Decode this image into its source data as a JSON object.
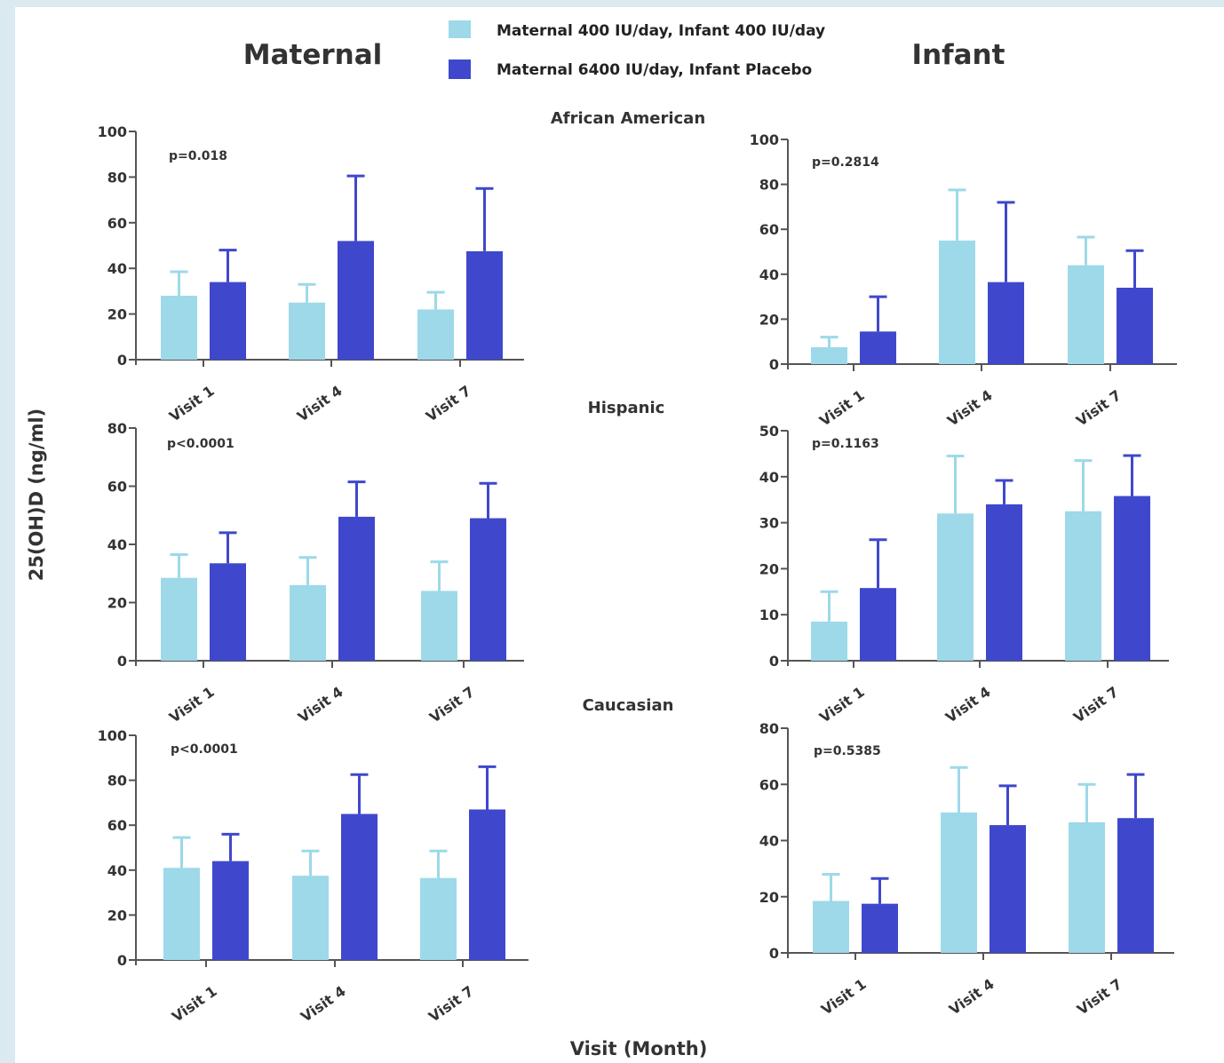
{
  "header": {
    "maternal_title": "Maternal",
    "infant_title": "Infant"
  },
  "legend": [
    {
      "label": "Maternal 400 IU/day, Infant 400 IU/day",
      "color": "#9dd9e8"
    },
    {
      "label": "Maternal 6400 IU/day, Infant Placebo",
      "color": "#3f48cc"
    }
  ],
  "sections": [
    "African American",
    "Hispanic",
    "Caucasian"
  ],
  "y_axis_title": "25(OH)D (ng/ml)",
  "x_axis_title": "Visit (Month)",
  "colors": {
    "light": "#9dd9e8",
    "dark": "#3f48cc",
    "axis": "#555555"
  },
  "chart_data": [
    {
      "type": "bar",
      "panel": "maternal-african-american",
      "categories": [
        "Visit 1",
        "Visit 4",
        "Visit 7"
      ],
      "series": [
        {
          "values": [
            28,
            25,
            22
          ],
          "errors": [
            10.5,
            8,
            7.5
          ]
        },
        {
          "values": [
            34,
            52,
            47.5
          ],
          "errors": [
            14,
            28.5,
            27.5
          ]
        }
      ],
      "ylim": [
        0,
        100
      ],
      "yticks": [
        0,
        20,
        40,
        60,
        80,
        100
      ],
      "annotation": "p=0.018"
    },
    {
      "type": "bar",
      "panel": "infant-african-american",
      "categories": [
        "Visit 1",
        "Visit 4",
        "Visit 7"
      ],
      "series": [
        {
          "values": [
            7.5,
            55,
            44
          ],
          "errors": [
            4.5,
            22.5,
            12.5
          ]
        },
        {
          "values": [
            14.5,
            36.5,
            34
          ],
          "errors": [
            15.5,
            35.5,
            16.5
          ]
        }
      ],
      "ylim": [
        0,
        100
      ],
      "yticks": [
        0,
        20,
        40,
        60,
        80,
        100
      ],
      "annotation": "p=0.2814"
    },
    {
      "type": "bar",
      "panel": "maternal-hispanic",
      "categories": [
        "Visit 1",
        "Visit 4",
        "Visit 7"
      ],
      "series": [
        {
          "values": [
            28.5,
            26,
            24
          ],
          "errors": [
            8,
            9.5,
            10
          ]
        },
        {
          "values": [
            33.5,
            49.5,
            49
          ],
          "errors": [
            10.5,
            12,
            12
          ]
        }
      ],
      "ylim": [
        0,
        80
      ],
      "yticks": [
        0,
        20,
        40,
        60,
        80
      ],
      "annotation": "p<0.0001"
    },
    {
      "type": "bar",
      "panel": "infant-hispanic",
      "categories": [
        "Visit 1",
        "Visit 4",
        "Visit 7"
      ],
      "series": [
        {
          "values": [
            8.5,
            32,
            32.5
          ],
          "errors": [
            6.5,
            12.5,
            11
          ]
        },
        {
          "values": [
            15.8,
            34,
            35.8
          ],
          "errors": [
            10.5,
            5.2,
            8.8
          ]
        }
      ],
      "ylim": [
        0,
        50
      ],
      "yticks": [
        0,
        10,
        20,
        30,
        40,
        50
      ],
      "annotation": "p=0.1163"
    },
    {
      "type": "bar",
      "panel": "maternal-caucasian",
      "categories": [
        "Visit 1",
        "Visit 4",
        "Visit 7"
      ],
      "series": [
        {
          "values": [
            41,
            37.5,
            36.5
          ],
          "errors": [
            13.5,
            11,
            12
          ]
        },
        {
          "values": [
            44,
            65,
            67
          ],
          "errors": [
            12,
            17.5,
            19
          ]
        }
      ],
      "ylim": [
        0,
        100
      ],
      "yticks": [
        0,
        20,
        40,
        60,
        80,
        100
      ],
      "annotation": "p<0.0001"
    },
    {
      "type": "bar",
      "panel": "infant-caucasian",
      "categories": [
        "Visit 1",
        "Visit 4",
        "Visit 7"
      ],
      "series": [
        {
          "values": [
            18.5,
            50,
            46.5
          ],
          "errors": [
            9.5,
            16,
            13.5
          ]
        },
        {
          "values": [
            17.5,
            45.5,
            48
          ],
          "errors": [
            9,
            14,
            15.5
          ]
        }
      ],
      "ylim": [
        0,
        80
      ],
      "yticks": [
        0,
        20,
        40,
        60,
        80
      ],
      "annotation": "p=0.5385"
    }
  ]
}
